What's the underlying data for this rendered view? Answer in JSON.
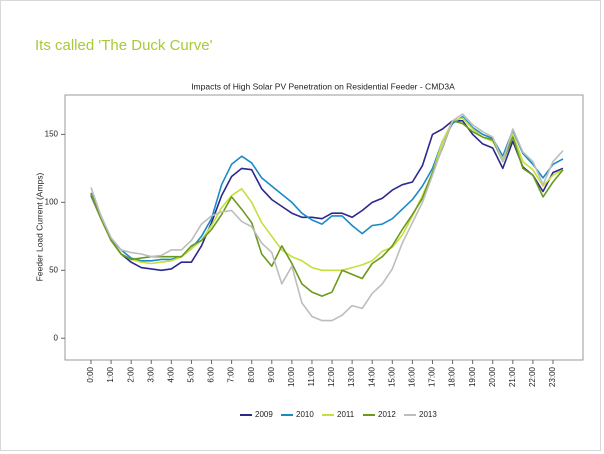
{
  "slide_title": "Its called 'The Duck Curve'",
  "chart_data": {
    "type": "line",
    "title": "Impacts of High Solar PV Penetration on Residential Feeder - CMD3A",
    "y_label": "Feeder Load Current (Amps)",
    "categories": [
      "0:00",
      null,
      "1:00",
      null,
      "2:00",
      null,
      "3:00",
      null,
      "4:00",
      null,
      "5:00",
      null,
      "6:00",
      null,
      "7:00",
      null,
      "8:00",
      null,
      "9:00",
      null,
      "10:00",
      null,
      "11:00",
      null,
      "12:00",
      null,
      "13:00",
      null,
      "14:00",
      null,
      "15:00",
      null,
      "16:00",
      null,
      "17:00",
      null,
      "18:00",
      null,
      "19:00",
      null,
      "20:00",
      null,
      "21:00",
      null,
      "22:00",
      null,
      "23:00",
      null
    ],
    "series": [
      {
        "name": "2009",
        "color": "#2b2a8c",
        "values": [
          105,
          88,
          72,
          62,
          56,
          52,
          51,
          50,
          51,
          56,
          56,
          68,
          85,
          105,
          119,
          125,
          124,
          110,
          102,
          97,
          92,
          89,
          89,
          88,
          92,
          92,
          89,
          94,
          100,
          103,
          109,
          113,
          115,
          127,
          150,
          154,
          160,
          160,
          150,
          143,
          140,
          125,
          145,
          126,
          120,
          108,
          122,
          125
        ]
      },
      {
        "name": "2010",
        "color": "#1a8ac8",
        "values": [
          107,
          90,
          73,
          65,
          59,
          57,
          57,
          58,
          58,
          60,
          66,
          75,
          88,
          113,
          128,
          134,
          129,
          118,
          112,
          106,
          100,
          92,
          87,
          84,
          90,
          90,
          83,
          77,
          83,
          84,
          88,
          95,
          102,
          112,
          125,
          145,
          158,
          163,
          155,
          150,
          147,
          134,
          153,
          136,
          128,
          118,
          128,
          132
        ]
      },
      {
        "name": "2011",
        "color": "#c5e03a",
        "values": [
          106,
          88,
          72,
          62,
          58,
          56,
          55,
          56,
          57,
          60,
          66,
          72,
          83,
          96,
          105,
          110,
          100,
          85,
          75,
          65,
          60,
          57,
          52,
          50,
          50,
          50,
          52,
          54,
          57,
          64,
          67,
          76,
          90,
          105,
          122,
          145,
          160,
          162,
          154,
          148,
          145,
          132,
          150,
          130,
          124,
          112,
          120,
          124
        ]
      },
      {
        "name": "2012",
        "color": "#6b9a1e",
        "values": [
          106,
          88,
          72,
          62,
          58,
          59,
          60,
          60,
          60,
          60,
          68,
          72,
          80,
          91,
          104,
          95,
          85,
          62,
          53,
          68,
          55,
          40,
          34,
          31,
          34,
          50,
          47,
          44,
          55,
          60,
          68,
          80,
          91,
          103,
          122,
          140,
          160,
          158,
          152,
          148,
          146,
          130,
          148,
          125,
          120,
          104,
          115,
          124
        ]
      },
      {
        "name": "2013",
        "color": "#bdbdbd",
        "values": [
          111,
          90,
          74,
          65,
          63,
          62,
          60,
          61,
          65,
          65,
          72,
          84,
          90,
          93,
          94,
          86,
          82,
          70,
          63,
          40,
          53,
          26,
          16,
          13,
          13,
          17,
          24,
          22,
          33,
          40,
          51,
          70,
          85,
          100,
          120,
          141,
          160,
          165,
          157,
          152,
          148,
          130,
          154,
          137,
          130,
          113,
          130,
          138
        ]
      }
    ],
    "ylim": [
      -16,
      179
    ],
    "yticks": [
      0,
      50,
      100,
      150
    ],
    "grid": false,
    "legend": "bottom"
  }
}
